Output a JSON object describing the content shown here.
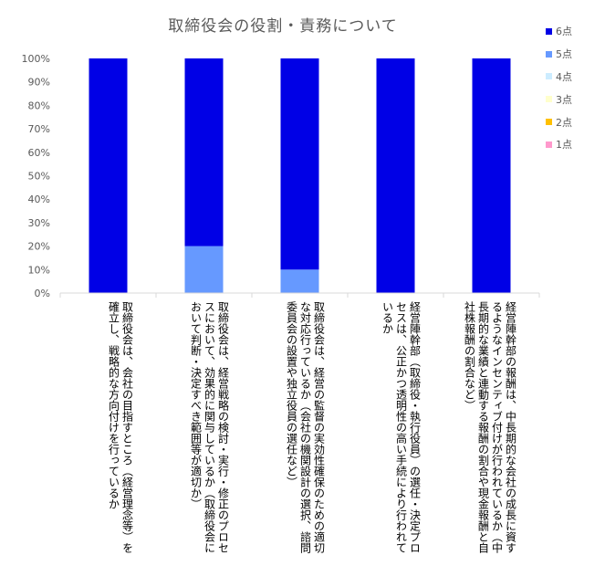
{
  "chart_data": {
    "type": "bar",
    "stacked": true,
    "percent": true,
    "title": "取締役会の役割・責務について",
    "categories": [
      "取締役会は、会社の目指すところ（経営理念等）を確立し、戦略的な方向付けを行っているか",
      "取締役会は、経営戦略の検討・実行・修正のプロセスにおいて、効果的に関与しているか（取締役会において判断・決定すべき範囲等が適切か）",
      "取締役会は、経営の監督の実効性確保のための適切な対応行っているか（会社の機関設計の選択、諮問委員会の設置や独立役員の選任など）",
      "経営陣幹部（取締役・執行役員）の選任・決定プロセスは、公正かつ透明性の高い手続により行われているか",
      "経営陣幹部の報酬は、中長期的な会社の成長に資するようなインセンティブ付けが行われているか（中長期的な業績と連動する報酬の割合や現金報酬と自社株報酬の割合など）"
    ],
    "series": [
      {
        "name": "1点",
        "color": "#ff99cc",
        "values": [
          0,
          0,
          0,
          0,
          0
        ]
      },
      {
        "name": "2点",
        "color": "#ffc000",
        "values": [
          0,
          0,
          0,
          0,
          0
        ]
      },
      {
        "name": "3点",
        "color": "#ffffcc",
        "values": [
          0,
          0,
          0,
          0,
          0
        ]
      },
      {
        "name": "4点",
        "color": "#ccecff",
        "values": [
          0,
          0,
          0,
          0,
          0
        ]
      },
      {
        "name": "5点",
        "color": "#6699ff",
        "values": [
          0,
          20,
          10,
          0,
          0
        ]
      },
      {
        "name": "6点",
        "color": "#0000e6",
        "values": [
          100,
          80,
          90,
          100,
          100
        ]
      }
    ],
    "yticks": [
      "0%",
      "10%",
      "20%",
      "30%",
      "40%",
      "50%",
      "60%",
      "70%",
      "80%",
      "90%",
      "100%"
    ],
    "ylim": [
      0,
      100
    ],
    "grid": false,
    "legend_position": "right"
  }
}
